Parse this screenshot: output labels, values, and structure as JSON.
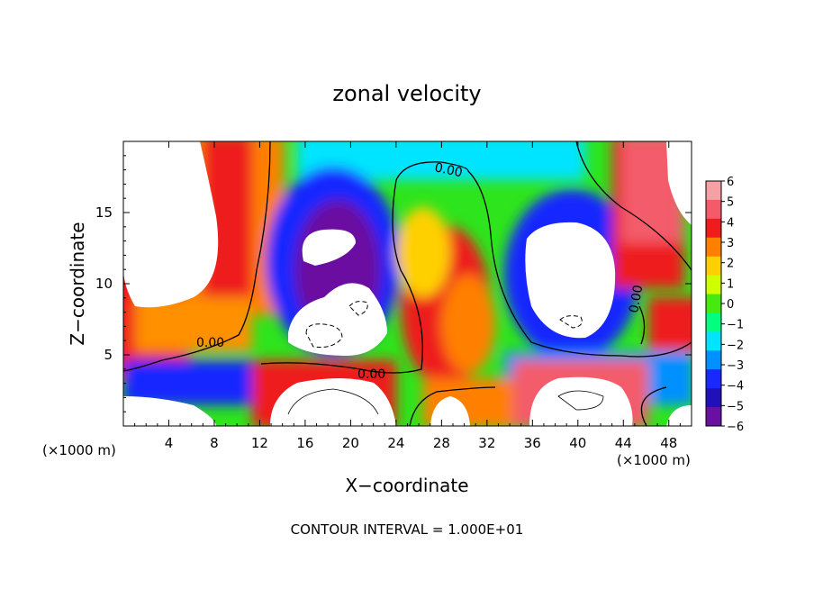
{
  "chart_data": {
    "type": "heatmap",
    "title": "zonal velocity",
    "xlabel": "X−coordinate",
    "ylabel": "Z−coordinate",
    "x_unit_label": "(×1000 m)",
    "y_unit_label": "(×1000 m)",
    "xlim": [
      0,
      50
    ],
    "ylim": [
      0,
      20
    ],
    "x_ticks": [
      4,
      8,
      12,
      16,
      20,
      24,
      28,
      32,
      36,
      40,
      44,
      48
    ],
    "x_tick_labels": [
      "4",
      "8",
      "12",
      "16",
      "20",
      "24",
      "28",
      "32",
      "36",
      "40",
      "44",
      "48"
    ],
    "y_ticks": [
      5,
      10,
      15
    ],
    "y_tick_labels": [
      "5",
      "10",
      "15"
    ],
    "colorbar": {
      "levels": [
        6,
        5,
        4,
        3,
        2,
        1,
        0,
        -1,
        -2,
        -3,
        -4,
        -5,
        -6
      ],
      "labels": [
        "6",
        "5",
        "4",
        "3",
        "2",
        "1",
        "0",
        "−1",
        "−2",
        "−3",
        "−4",
        "−5",
        "−6"
      ],
      "colors": [
        "#f4a0a4",
        "#f35b6b",
        "#ee1c1c",
        "#ff7f00",
        "#ffd000",
        "#d0ff00",
        "#46ea10",
        "#00ff7f",
        "#00e4ff",
        "#0090ff",
        "#1828ff",
        "#2010b8",
        "#6a10a0"
      ]
    },
    "contour_labels": [
      "0.00",
      "0.00",
      "0.00",
      "0.00"
    ],
    "annotation": "CONTOUR INTERVAL = 1.000E+01",
    "grid": false,
    "legend_position": "right"
  }
}
